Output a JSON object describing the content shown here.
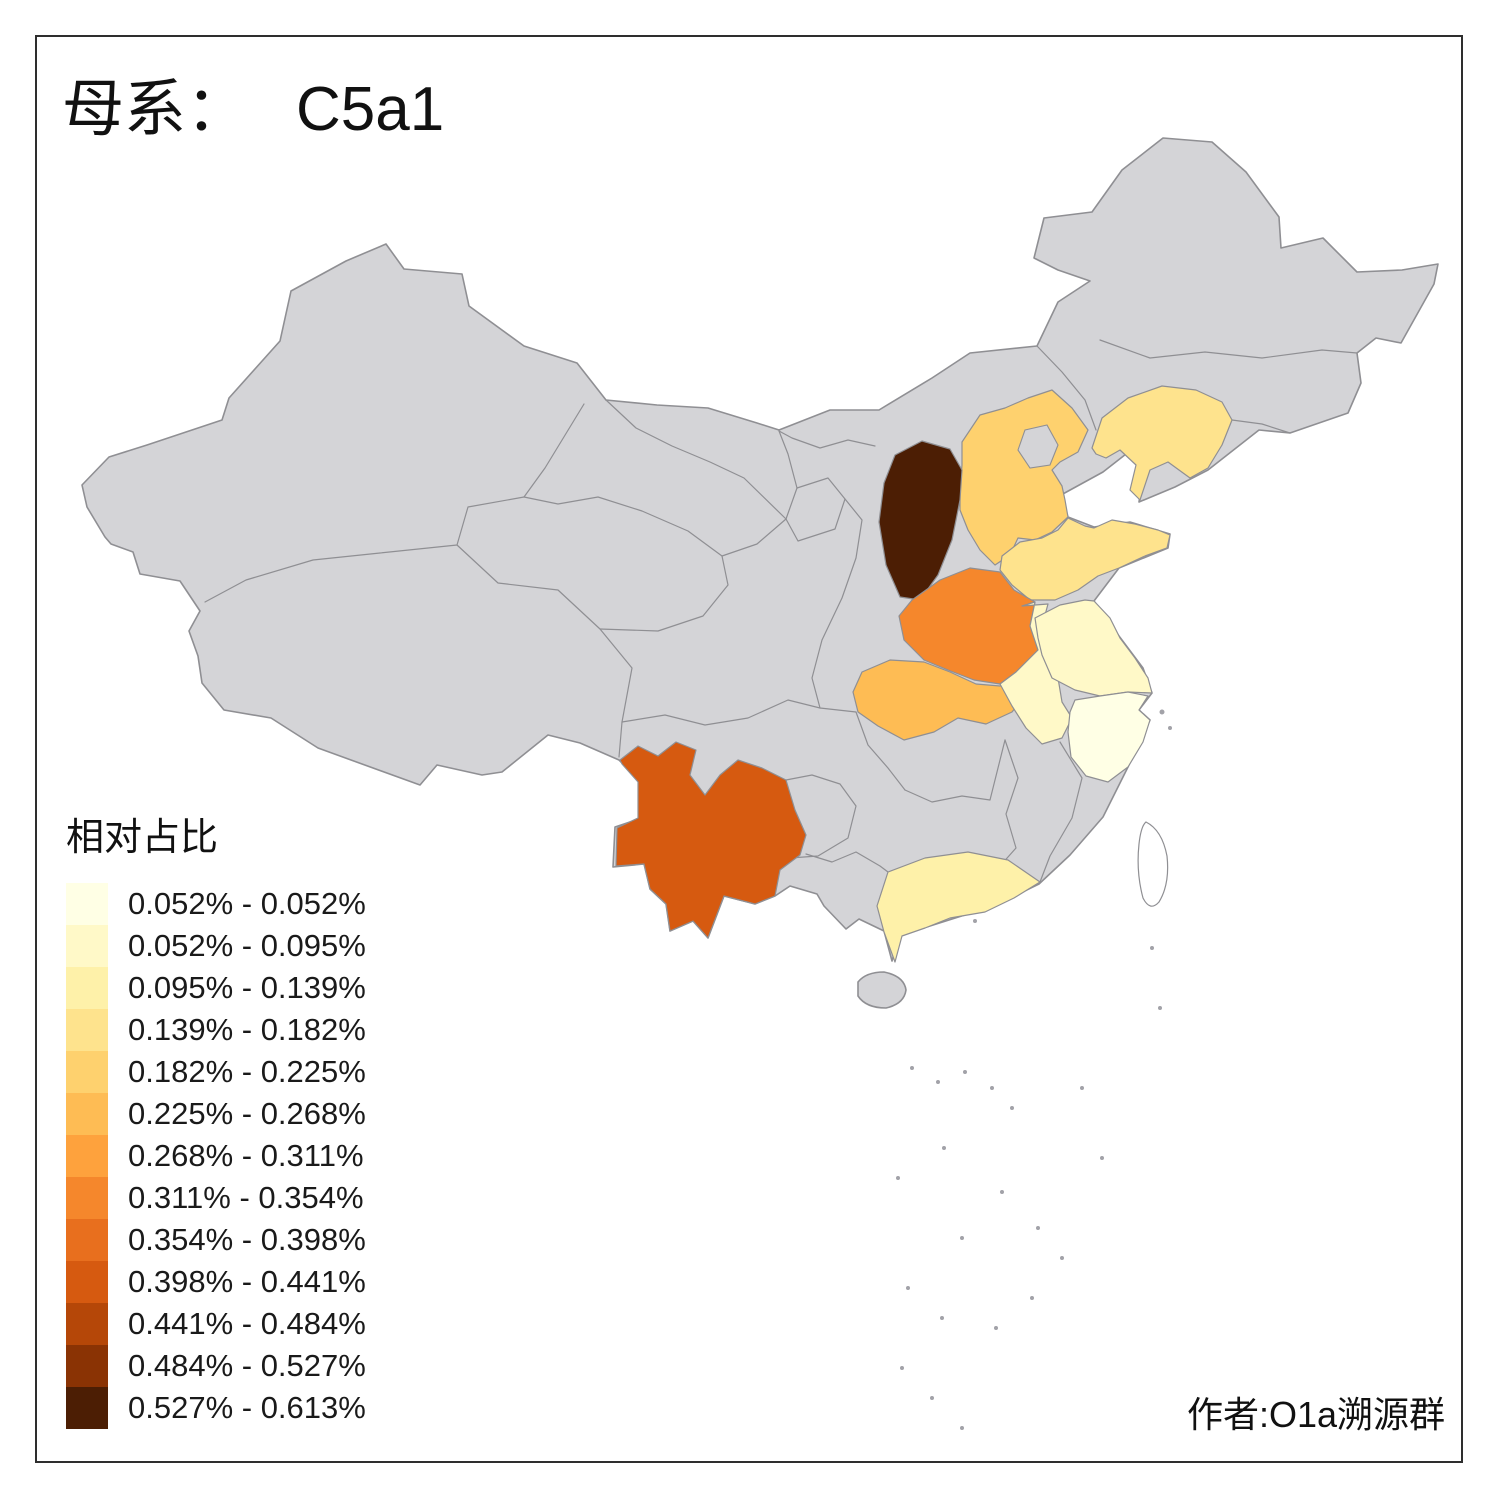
{
  "title": {
    "prefix": "母系：",
    "haplogroup": "C5a1"
  },
  "legend": {
    "title": "相对占比",
    "classes": [
      {
        "range": "0.052% - 0.052%",
        "color": "#FFFFE5"
      },
      {
        "range": "0.052% - 0.095%",
        "color": "#FFF9C8"
      },
      {
        "range": "0.095% - 0.139%",
        "color": "#FEF1A9"
      },
      {
        "range": "0.139% - 0.182%",
        "color": "#FEE38D"
      },
      {
        "range": "0.182% - 0.225%",
        "color": "#FED16E"
      },
      {
        "range": "0.225% - 0.268%",
        "color": "#FEBC54"
      },
      {
        "range": "0.268% - 0.311%",
        "color": "#FEA23D"
      },
      {
        "range": "0.311% - 0.354%",
        "color": "#F5872C"
      },
      {
        "range": "0.354% - 0.398%",
        "color": "#E86F1E"
      },
      {
        "range": "0.398% - 0.441%",
        "color": "#D65A10"
      },
      {
        "range": "0.441% - 0.484%",
        "color": "#B54708"
      },
      {
        "range": "0.484% - 0.527%",
        "color": "#8A3304"
      },
      {
        "range": "0.527% - 0.613%",
        "color": "#4C1E04"
      }
    ]
  },
  "attribution": "作者:O1a溯源群",
  "map": {
    "no_data_color": "#d4d4d7",
    "border_color": "#8f8f93",
    "provinces": [
      {
        "id": "shanxi",
        "name": "Shanxi",
        "class_index": 12
      },
      {
        "id": "yunnan",
        "name": "Yunnan",
        "class_index": 9
      },
      {
        "id": "henan",
        "name": "Henan",
        "class_index": 7
      },
      {
        "id": "hubei",
        "name": "Hubei",
        "class_index": 5
      },
      {
        "id": "hebei",
        "name": "Hebei",
        "class_index": 4
      },
      {
        "id": "liaoning",
        "name": "Liaoning",
        "class_index": 3
      },
      {
        "id": "shandong",
        "name": "Shandong",
        "class_index": 3
      },
      {
        "id": "guangdong",
        "name": "Guangdong",
        "class_index": 2
      },
      {
        "id": "jiangsu",
        "name": "Jiangsu",
        "class_index": 1
      },
      {
        "id": "anhui",
        "name": "Anhui",
        "class_index": 1
      },
      {
        "id": "zhejiang",
        "name": "Zhejiang",
        "class_index": 0
      }
    ]
  }
}
